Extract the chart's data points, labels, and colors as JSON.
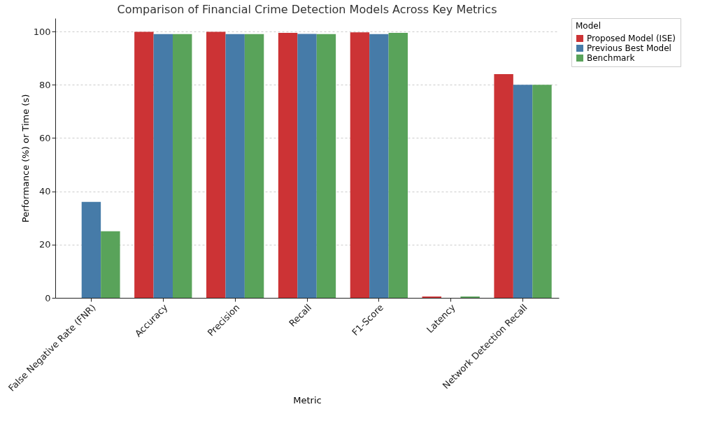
{
  "chart_data": {
    "type": "bar",
    "title": "Comparison of Financial Crime Detection Models Across Key Metrics",
    "xlabel": "Metric",
    "ylabel": "Performance (%) or Time (s)",
    "legend_title": "Model",
    "legend": "right",
    "grid": "y",
    "categories": [
      "False Negative Rate (FNR)",
      "Accuracy",
      "Precision",
      "Recall",
      "F1-Score",
      "Latency",
      "Network Detection Recall"
    ],
    "ylim": [
      0,
      105
    ],
    "yticks": [
      0,
      20,
      40,
      60,
      80,
      100
    ],
    "series": [
      {
        "name": "Proposed Model (ISE)",
        "color": "#cc3335",
        "values": [
          0,
          99.9,
          99.9,
          99.5,
          99.7,
          0.5,
          84
        ]
      },
      {
        "name": "Previous Best Model",
        "color": "#467ba8",
        "values": [
          36,
          99,
          99,
          99.1,
          99,
          0,
          80
        ]
      },
      {
        "name": "Benchmark",
        "color": "#59a35a",
        "values": [
          25,
          99,
          99,
          99,
          99.5,
          0.5,
          80
        ]
      }
    ]
  }
}
